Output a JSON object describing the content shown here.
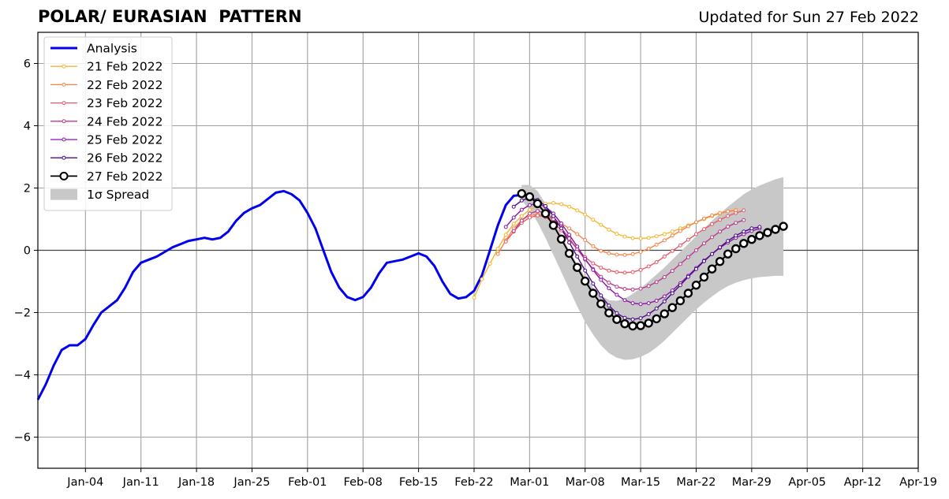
{
  "chart_data": {
    "type": "line",
    "title": "POLAR/ EURASIAN  PATTERN",
    "subtitle": "Updated for Sun 27 Feb 2022",
    "xlabel": "",
    "ylabel": "",
    "x_axis": {
      "start": "2021-12-29",
      "end": "2022-04-19",
      "ticks": [
        "Jan-04",
        "Jan-11",
        "Jan-18",
        "Jan-25",
        "Feb-01",
        "Feb-08",
        "Feb-15",
        "Feb-22",
        "Mar-01",
        "Mar-08",
        "Mar-15",
        "Mar-22",
        "Mar-29",
        "Apr-05",
        "Apr-12",
        "Apr-19"
      ],
      "tick_dates": [
        "2022-01-04",
        "2022-01-11",
        "2022-01-18",
        "2022-01-25",
        "2022-02-01",
        "2022-02-08",
        "2022-02-15",
        "2022-02-22",
        "2022-03-01",
        "2022-03-08",
        "2022-03-15",
        "2022-03-22",
        "2022-03-29",
        "2022-04-05",
        "2022-04-12",
        "2022-04-19"
      ]
    },
    "ylim": [
      -7,
      7
    ],
    "yticks": [
      -6,
      -4,
      -2,
      0,
      2,
      4,
      6
    ],
    "ytick_labels": [
      "−6",
      "−4",
      "−2",
      "0",
      "2",
      "4",
      "6"
    ],
    "grid": true,
    "legend_placement": "top-left",
    "legend": [
      "Analysis",
      "21 Feb 2022",
      "22 Feb 2022",
      "23 Feb 2022",
      "24 Feb 2022",
      "25 Feb 2022",
      "26 Feb 2022",
      "27 Feb 2022",
      "1σ Spread"
    ],
    "analysis": {
      "name": "Analysis",
      "color": "#0000ee",
      "start": "2021-12-29",
      "values": [
        -4.8,
        -4.3,
        -3.7,
        -3.2,
        -3.05,
        -3.05,
        -2.85,
        -2.4,
        -2.0,
        -1.8,
        -1.6,
        -1.2,
        -0.7,
        -0.4,
        -0.3,
        -0.2,
        -0.05,
        0.1,
        0.2,
        0.3,
        0.35,
        0.4,
        0.35,
        0.4,
        0.6,
        0.95,
        1.2,
        1.35,
        1.45,
        1.65,
        1.85,
        1.9,
        1.8,
        1.6,
        1.2,
        0.7,
        0.0,
        -0.7,
        -1.2,
        -1.5,
        -1.6,
        -1.5,
        -1.2,
        -0.75,
        -0.4,
        -0.35,
        -0.3,
        -0.2,
        -0.1,
        -0.2,
        -0.5,
        -1.0,
        -1.4,
        -1.55,
        -1.5,
        -1.3,
        -0.8,
        0.0,
        0.8,
        1.45,
        1.75,
        1.78
      ]
    },
    "forecasts": [
      {
        "name": "21 Feb 2022",
        "color": "#f5b631",
        "start": "2022-02-22",
        "values": [
          -1.52,
          -0.93,
          -0.43,
          0.05,
          0.5,
          0.85,
          1.1,
          1.3,
          1.42,
          1.5,
          1.52,
          1.48,
          1.4,
          1.28,
          1.15,
          0.98,
          0.82,
          0.66,
          0.53,
          0.44,
          0.39,
          0.38,
          0.4,
          0.45,
          0.52,
          0.6,
          0.7,
          0.8,
          0.9,
          1.0,
          1.1,
          1.18,
          1.25,
          1.3
        ]
      },
      {
        "name": "22 Feb 2022",
        "color": "#f3854b",
        "start": "2022-02-25",
        "values": [
          -0.12,
          0.32,
          0.7,
          0.97,
          1.12,
          1.15,
          1.1,
          1.0,
          0.86,
          0.7,
          0.52,
          0.33,
          0.13,
          -0.02,
          -0.1,
          -0.14,
          -0.15,
          -0.12,
          -0.05,
          0.05,
          0.18,
          0.32,
          0.47,
          0.62,
          0.77,
          0.9,
          1.02,
          1.12,
          1.2,
          1.25,
          1.28
        ]
      },
      {
        "name": "23 Feb 2022",
        "color": "#e85868",
        "start": "2022-02-26",
        "values": [
          0.28,
          0.6,
          0.88,
          1.05,
          1.12,
          1.07,
          0.9,
          0.64,
          0.34,
          0.04,
          -0.22,
          -0.42,
          -0.56,
          -0.65,
          -0.7,
          -0.72,
          -0.7,
          -0.63,
          -0.52,
          -0.38,
          -0.2,
          -0.02,
          0.16,
          0.34,
          0.52,
          0.68,
          0.84,
          0.98,
          1.1,
          1.2,
          1.28
        ]
      },
      {
        "name": "24 Feb 2022",
        "color": "#bb3a8e",
        "start": "2022-02-27",
        "values": [
          0.62,
          0.95,
          1.18,
          1.26,
          1.2,
          1.0,
          0.72,
          0.38,
          0.04,
          -0.3,
          -0.6,
          -0.85,
          -1.04,
          -1.17,
          -1.24,
          -1.26,
          -1.23,
          -1.15,
          -1.02,
          -0.86,
          -0.66,
          -0.44,
          -0.22,
          0.0,
          0.22,
          0.42,
          0.6,
          0.76,
          0.88,
          0.97
        ]
      },
      {
        "name": "25 Feb 2022",
        "color": "#8b15a8",
        "start": "2022-02-26",
        "values": [
          0.75,
          1.05,
          1.3,
          1.45,
          1.5,
          1.4,
          1.18,
          0.86,
          0.5,
          0.12,
          -0.27,
          -0.63,
          -0.95,
          -1.22,
          -1.43,
          -1.6,
          -1.7,
          -1.73,
          -1.7,
          -1.62,
          -1.48,
          -1.29,
          -1.06,
          -0.82,
          -0.57,
          -0.33,
          -0.12,
          0.08,
          0.25,
          0.4,
          0.52,
          0.62,
          0.7
        ]
      },
      {
        "name": "26 Feb 2022",
        "color": "#4b0c8b",
        "start": "2022-02-27",
        "values": [
          1.4,
          1.6,
          1.68,
          1.62,
          1.42,
          1.1,
          0.7,
          0.25,
          -0.2,
          -0.65,
          -1.07,
          -1.45,
          -1.78,
          -2.02,
          -2.17,
          -2.22,
          -2.18,
          -2.05,
          -1.87,
          -1.64,
          -1.38,
          -1.12,
          -0.85,
          -0.6,
          -0.35,
          -0.12,
          0.1,
          0.3,
          0.47,
          0.6,
          0.7,
          0.75
        ]
      },
      {
        "name": "27 Feb 2022",
        "color": "#000000",
        "start": "2022-02-28",
        "values": [
          1.82,
          1.72,
          1.5,
          1.18,
          0.8,
          0.36,
          -0.1,
          -0.55,
          -0.99,
          -1.38,
          -1.72,
          -2.01,
          -2.22,
          -2.36,
          -2.43,
          -2.42,
          -2.34,
          -2.2,
          -2.04,
          -1.84,
          -1.62,
          -1.38,
          -1.12,
          -0.86,
          -0.6,
          -0.36,
          -0.12,
          0.05,
          0.22,
          0.35,
          0.47,
          0.57,
          0.67,
          0.77
        ]
      }
    ],
    "spread": {
      "name": "1σ Spread",
      "color": "#c8c8c8",
      "start": "2022-02-28",
      "upper": [
        2.1,
        2.1,
        1.9,
        1.5,
        1.0,
        0.5,
        0.0,
        -0.45,
        -0.85,
        -1.2,
        -1.45,
        -1.6,
        -1.62,
        -1.55,
        -1.4,
        -1.22,
        -1.0,
        -0.78,
        -0.55,
        -0.3,
        -0.05,
        0.2,
        0.45,
        0.7,
        0.95,
        1.18,
        1.4,
        1.6,
        1.8,
        1.95,
        2.08,
        2.18,
        2.28,
        2.35
      ],
      "lower": [
        1.6,
        1.3,
        0.9,
        0.4,
        -0.15,
        -0.7,
        -1.25,
        -1.8,
        -2.3,
        -2.7,
        -3.05,
        -3.3,
        -3.45,
        -3.52,
        -3.5,
        -3.42,
        -3.3,
        -3.12,
        -2.9,
        -2.65,
        -2.4,
        -2.15,
        -1.9,
        -1.68,
        -1.48,
        -1.3,
        -1.15,
        -1.04,
        -0.96,
        -0.9,
        -0.86,
        -0.84,
        -0.82,
        -0.82
      ]
    }
  }
}
